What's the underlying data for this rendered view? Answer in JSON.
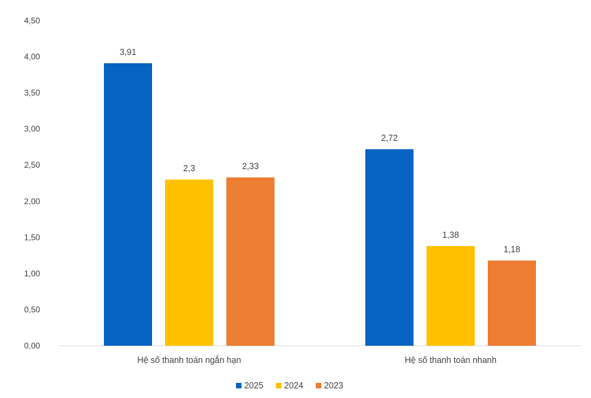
{
  "chart_data": {
    "type": "bar",
    "categories": [
      "Hệ số thanh toán ngắn hạn",
      "Hệ số thanh toán nhanh"
    ],
    "series": [
      {
        "name": "2025",
        "values": [
          3.91,
          2.72
        ],
        "labels": [
          "3,91",
          "2,72"
        ],
        "color": "#0563C1"
      },
      {
        "name": "2024",
        "values": [
          2.3,
          1.38
        ],
        "labels": [
          "2,3",
          "1,38"
        ],
        "color": "#FFC000"
      },
      {
        "name": "2023",
        "values": [
          2.33,
          1.18
        ],
        "labels": [
          "2,33",
          "1,18"
        ],
        "color": "#ED7D31"
      }
    ],
    "ylim": [
      0,
      4.5
    ],
    "yticks": [
      0,
      0.5,
      1.0,
      1.5,
      2.0,
      2.5,
      3.0,
      3.5,
      4.0,
      4.5
    ],
    "ytick_labels": [
      "0,00",
      "0,50",
      "1,00",
      "1,50",
      "2,00",
      "2,50",
      "3,00",
      "3,50",
      "4,00",
      "4,50"
    ],
    "grid": false,
    "legend_position": "bottom-center",
    "axis_color": "#d9d9d9"
  }
}
